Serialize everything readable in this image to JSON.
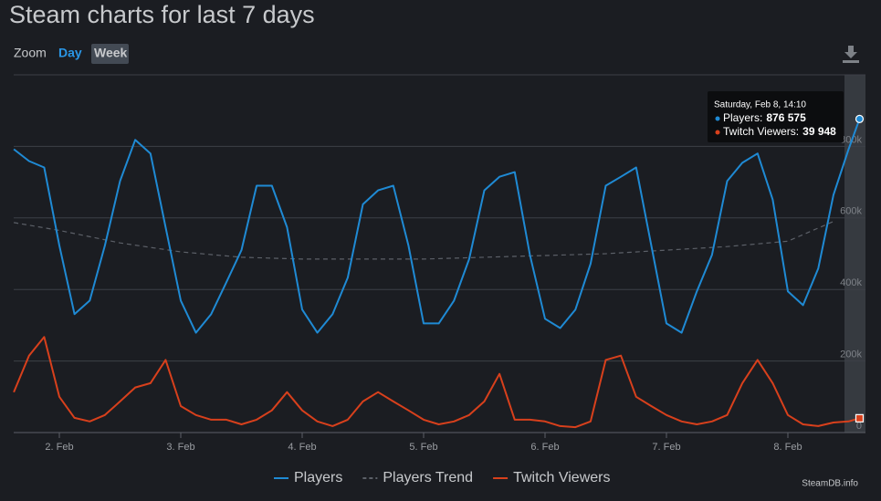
{
  "chart_data": {
    "type": "line",
    "title": "Steam charts for last 7 days",
    "zoom": {
      "label": "Zoom",
      "options": [
        "Day",
        "Week"
      ]
    },
    "credit": "SteamDB.info",
    "xlim": [
      1.624,
      8.639
    ],
    "xticks": [
      {
        "value": 2,
        "label": "2. Feb"
      },
      {
        "value": 3,
        "label": "3. Feb"
      },
      {
        "value": 4,
        "label": "4. Feb"
      },
      {
        "value": 5,
        "label": "5. Feb"
      },
      {
        "value": 6,
        "label": "6. Feb"
      },
      {
        "value": 7,
        "label": "7. Feb"
      },
      {
        "value": 8,
        "label": "8. Feb"
      }
    ],
    "ylim": [
      0,
      1000000
    ],
    "yticks": [
      0,
      {
        "value": 200000,
        "label": "200k"
      },
      {
        "value": 400000,
        "label": "400k"
      },
      {
        "value": 600000,
        "label": "600k"
      },
      {
        "value": 800000,
        "label": "800k"
      }
    ],
    "grid": true,
    "series": [
      {
        "name": "Players",
        "color": "#1f8ad4",
        "style": "solid",
        "x": [
          1.625,
          1.75,
          1.875,
          2.0,
          2.125,
          2.25,
          2.375,
          2.5,
          2.625,
          2.75,
          2.875,
          3.0,
          3.125,
          3.25,
          3.375,
          3.5,
          3.625,
          3.75,
          3.875,
          4.0,
          4.125,
          4.25,
          4.375,
          4.5,
          4.625,
          4.75,
          4.875,
          5.0,
          5.125,
          5.25,
          5.375,
          5.5,
          5.625,
          5.75,
          5.875,
          6.0,
          6.125,
          6.25,
          6.375,
          6.5,
          6.625,
          6.75,
          6.875,
          7.0,
          7.125,
          7.25,
          7.375,
          7.5,
          7.625,
          7.75,
          7.875,
          8.0,
          8.125,
          8.25,
          8.375,
          8.5,
          8.59
        ],
        "values": [
          792000,
          759000,
          741000,
          523000,
          331000,
          369000,
          523000,
          703000,
          818000,
          780000,
          574000,
          369000,
          279000,
          331000,
          420000,
          510000,
          690000,
          690000,
          574000,
          344000,
          279000,
          331000,
          433000,
          638000,
          677000,
          690000,
          523000,
          305000,
          305000,
          369000,
          485000,
          677000,
          715000,
          728000,
          497000,
          318000,
          292000,
          344000,
          472000,
          690000,
          715000,
          741000,
          523000,
          305000,
          279000,
          395000,
          497000,
          703000,
          754000,
          780000,
          651000,
          395000,
          356000,
          459000,
          664000,
          792000,
          876575
        ]
      },
      {
        "name": "Players Trend",
        "color": "#5c6068",
        "style": "dashed",
        "x": [
          1.625,
          2.0,
          2.5,
          3.0,
          3.5,
          4.0,
          4.5,
          5.0,
          5.5,
          6.0,
          6.5,
          7.0,
          7.5,
          8.0,
          8.375
        ],
        "values": [
          587000,
          565000,
          530000,
          505000,
          490000,
          485000,
          485000,
          485000,
          490000,
          495000,
          500000,
          510000,
          520000,
          535000,
          590000
        ]
      },
      {
        "name": "Twitch Viewers",
        "color": "#d8401c",
        "style": "solid",
        "x": [
          1.625,
          1.75,
          1.875,
          2.0,
          2.125,
          2.25,
          2.375,
          2.5,
          2.625,
          2.75,
          2.875,
          3.0,
          3.125,
          3.25,
          3.375,
          3.5,
          3.625,
          3.75,
          3.875,
          4.0,
          4.125,
          4.25,
          4.375,
          4.5,
          4.625,
          4.75,
          4.875,
          5.0,
          5.125,
          5.25,
          5.375,
          5.5,
          5.625,
          5.75,
          5.875,
          6.0,
          6.125,
          6.25,
          6.375,
          6.5,
          6.625,
          6.75,
          6.875,
          7.0,
          7.125,
          7.25,
          7.375,
          7.5,
          7.625,
          7.75,
          7.875,
          8.0,
          8.125,
          8.25,
          8.375,
          8.5,
          8.59
        ],
        "values": [
          113000,
          215000,
          267000,
          100000,
          41000,
          31000,
          49000,
          87000,
          126000,
          138000,
          203000,
          74000,
          49000,
          36000,
          36000,
          23000,
          36000,
          62000,
          113000,
          62000,
          31000,
          18000,
          36000,
          87000,
          113000,
          87000,
          62000,
          36000,
          23000,
          31000,
          49000,
          87000,
          164000,
          36000,
          36000,
          31000,
          18000,
          15000,
          31000,
          203000,
          215000,
          100000,
          74000,
          49000,
          31000,
          23000,
          31000,
          49000,
          138000,
          203000,
          138000,
          49000,
          23000,
          18000,
          28000,
          31000,
          39948
        ]
      }
    ],
    "tooltip": {
      "title": "Saturday, Feb 8, 14:10",
      "items": [
        {
          "label": "Players:",
          "value_label": "876 575"
        },
        {
          "label": "Twitch Viewers:",
          "value_label": "39 948"
        }
      ]
    }
  }
}
